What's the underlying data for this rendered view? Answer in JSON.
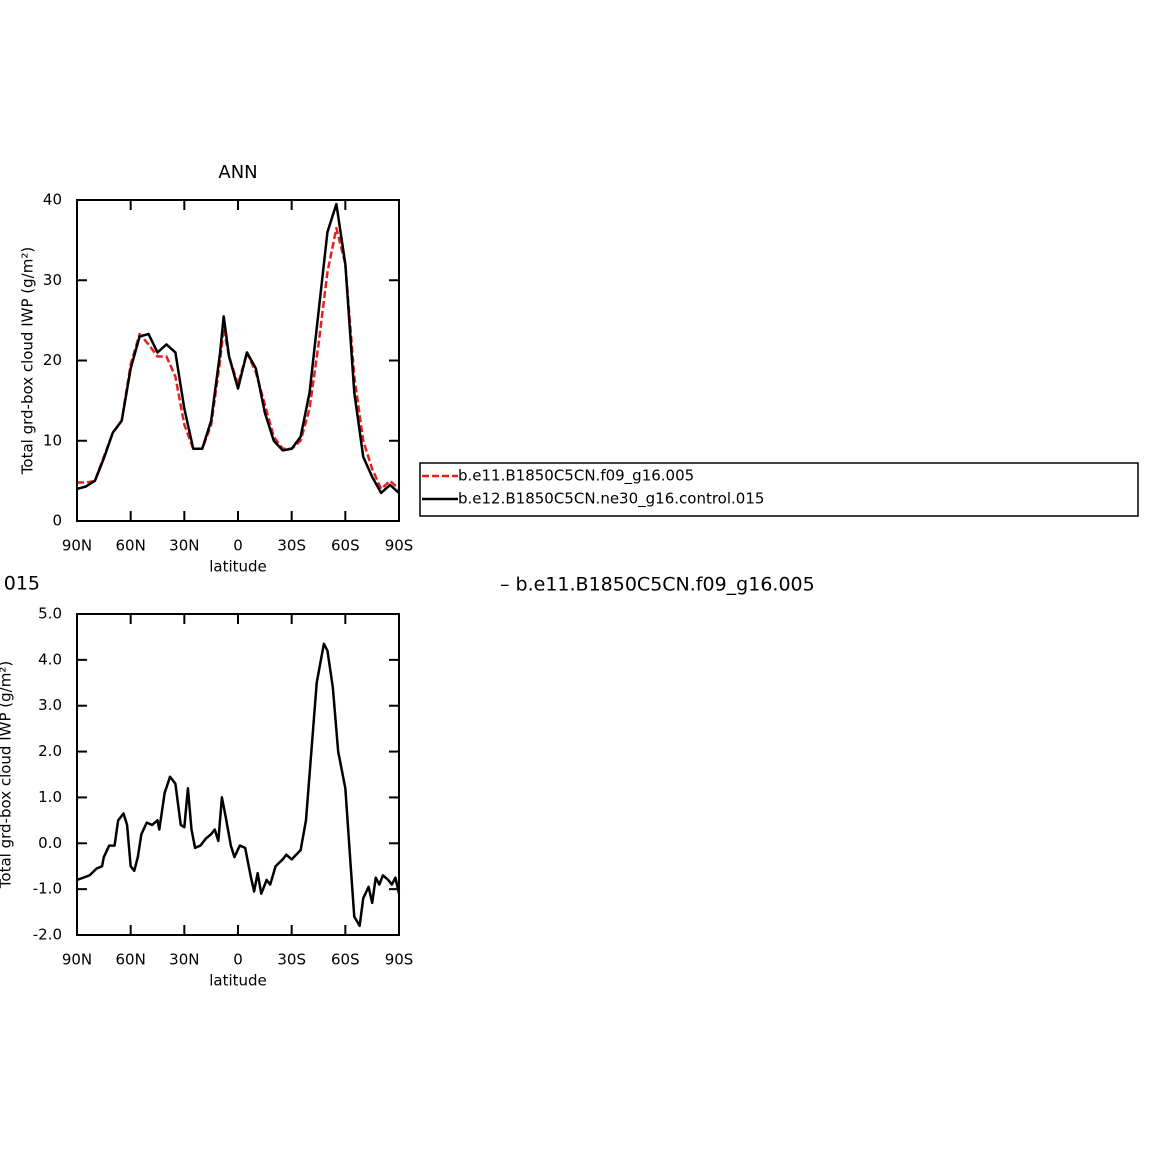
{
  "chart_data": [
    {
      "type": "line",
      "title": "ANN",
      "y_label": "Total grd-box cloud IWP (g/m²)",
      "x_label": "latitude",
      "x": [
        90,
        85,
        80,
        75,
        70,
        65,
        60,
        55,
        50,
        45,
        40,
        35,
        30,
        25,
        20,
        15,
        10,
        8,
        5,
        0,
        -5,
        -10,
        -15,
        -20,
        -25,
        -30,
        -35,
        -40,
        -45,
        -50,
        -55,
        -60,
        -65,
        -70,
        -75,
        -80,
        -85,
        -90
      ],
      "series": [
        {
          "name": "b.e11.B1850C5CN.f09_g16.005",
          "color": "#e8201c",
          "linestyle": "dashed",
          "values": [
            4.8,
            4.8,
            5,
            8,
            11,
            12.5,
            19.5,
            23.3,
            22,
            20.5,
            20.5,
            18,
            12,
            9,
            9,
            12,
            20,
            24,
            20.5,
            17,
            21,
            18.5,
            14.5,
            10.5,
            9,
            9,
            10,
            14,
            22,
            31,
            36.5,
            32,
            18,
            10,
            6.5,
            4,
            5,
            4
          ]
        },
        {
          "name": "b.e12.B1850C5CN.ne30_g16.control.015",
          "color": "#000000",
          "linestyle": "solid",
          "values": [
            4,
            4.3,
            5,
            7.8,
            11,
            12.5,
            19,
            23,
            23.3,
            21,
            22,
            21,
            14,
            9,
            9,
            12.5,
            21,
            25.5,
            20.5,
            16.5,
            21,
            19,
            13.5,
            10,
            8.8,
            9,
            10.5,
            16,
            26,
            36,
            39.5,
            32,
            16,
            8,
            5.5,
            3.5,
            4.5,
            3.5
          ]
        }
      ],
      "xlim": [
        90,
        -90
      ],
      "xticks": [
        {
          "value": 90,
          "label": "90N"
        },
        {
          "value": 60,
          "label": "60N"
        },
        {
          "value": 30,
          "label": "30N"
        },
        0,
        {
          "value": -30,
          "label": "30S"
        },
        {
          "value": -60,
          "label": "60S"
        },
        {
          "value": -90,
          "label": "90S"
        }
      ],
      "ylim": [
        0,
        40
      ],
      "yticks": [
        0,
        10,
        20,
        30,
        40
      ],
      "legend": "right"
    },
    {
      "type": "line",
      "title": [
        "015",
        "– b.e11.B1850C5CN.f09_g16.005"
      ],
      "y_label": "Total grd-box cloud IWP (g/m²)",
      "x_label": "latitude",
      "x": [
        90,
        83,
        79,
        76,
        75,
        72,
        69,
        67,
        64,
        62,
        60,
        58,
        56,
        54,
        51,
        48,
        45,
        44,
        41,
        38,
        35,
        32,
        30,
        28,
        26,
        24,
        21,
        18,
        15,
        13,
        11,
        9,
        7,
        4,
        2,
        -1,
        -4,
        -7,
        -9,
        -11,
        -13,
        -16,
        -18,
        -21,
        -25,
        -27,
        -30,
        -35,
        -38,
        -41,
        -44,
        -48,
        -50,
        -53,
        -56,
        -60,
        -63,
        -65,
        -68,
        -70,
        -73,
        -75,
        -77,
        -79,
        -81,
        -84,
        -86,
        -88,
        -90
      ],
      "series": [
        {
          "color": "#000000",
          "linestyle": "solid",
          "values": [
            -0.8,
            -0.7,
            -0.55,
            -0.5,
            -0.3,
            -0.05,
            -0.05,
            0.5,
            0.65,
            0.4,
            -0.5,
            -0.6,
            -0.3,
            0.2,
            0.45,
            0.4,
            0.5,
            0.3,
            1.1,
            1.45,
            1.3,
            0.4,
            0.35,
            1.2,
            0.3,
            -0.1,
            -0.05,
            0.1,
            0.2,
            0.3,
            0.05,
            1.0,
            0.6,
            -0.05,
            -0.3,
            -0.05,
            -0.1,
            -0.7,
            -1.05,
            -0.65,
            -1.1,
            -0.8,
            -0.9,
            -0.5,
            -0.35,
            -0.25,
            -0.35,
            -0.15,
            0.5,
            2.0,
            3.5,
            4.35,
            4.2,
            3.4,
            2.0,
            1.2,
            -0.5,
            -1.6,
            -1.8,
            -1.2,
            -0.95,
            -1.3,
            -0.75,
            -0.9,
            -0.7,
            -0.8,
            -0.9,
            -0.75,
            -1.1
          ]
        }
      ],
      "xlim": [
        90,
        -90
      ],
      "xticks": [
        {
          "value": 90,
          "label": "90N"
        },
        {
          "value": 60,
          "label": "60N"
        },
        {
          "value": 30,
          "label": "30N"
        },
        0,
        {
          "value": -30,
          "label": "30S"
        },
        {
          "value": -60,
          "label": "60S"
        },
        {
          "value": -90,
          "label": "90S"
        }
      ],
      "ylim": [
        -2,
        5
      ],
      "yticks": [
        {
          "value": -2,
          "label": "-2.0"
        },
        {
          "value": -1,
          "label": "-1.0"
        },
        {
          "value": 0,
          "label": "0.0"
        },
        {
          "value": 1,
          "label": "1.0"
        },
        {
          "value": 2,
          "label": "2.0"
        },
        {
          "value": 3,
          "label": "3.0"
        },
        {
          "value": 4,
          "label": "4.0"
        },
        {
          "value": 5,
          "label": "5.0"
        }
      ]
    }
  ]
}
